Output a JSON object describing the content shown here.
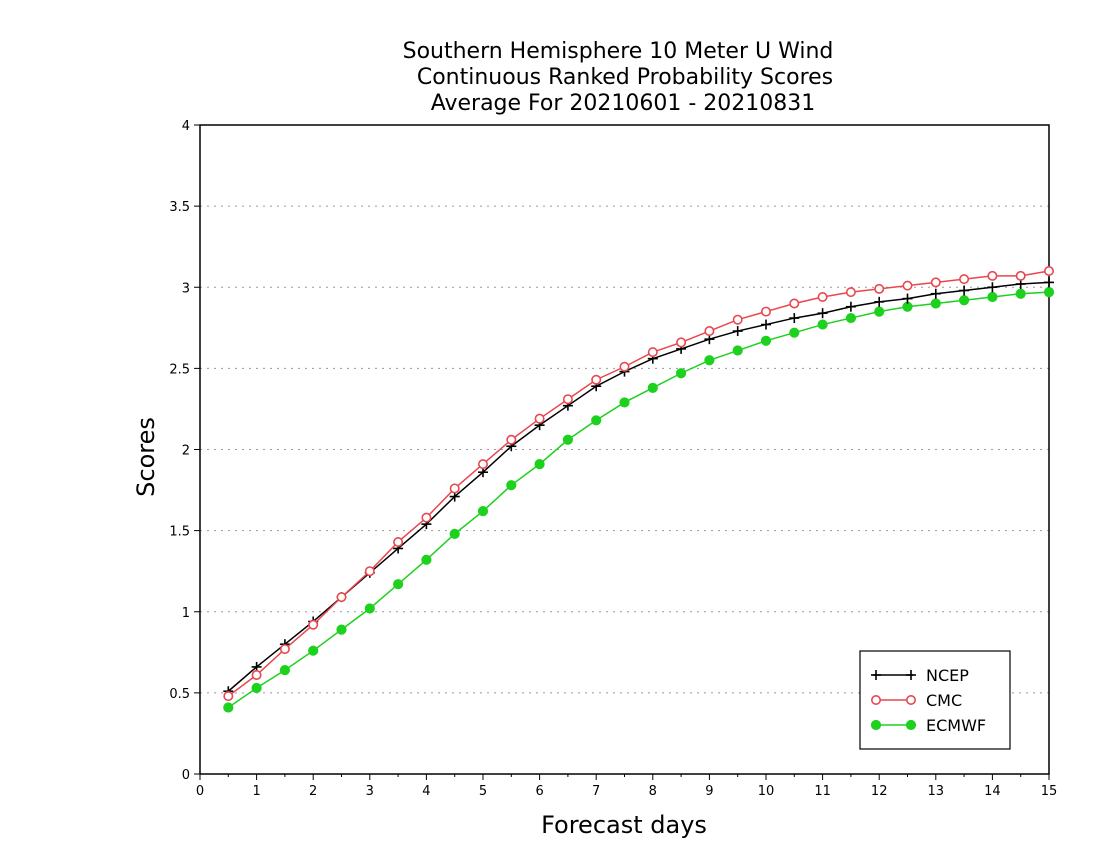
{
  "chart_data": {
    "type": "line",
    "title": [
      "Southern Hemisphere 10 Meter U Wind",
      "Continuous Ranked Probability Scores",
      "Average For 20210601 - 20210831"
    ],
    "xlabel": "Forecast days",
    "ylabel": "Scores",
    "xlim": [
      0,
      15
    ],
    "ylim": [
      0,
      4
    ],
    "x_ticks": [
      "0",
      "1",
      "2",
      "3",
      "4",
      "5",
      "6",
      "7",
      "8",
      "9",
      "10",
      "11",
      "12",
      "13",
      "14",
      "15"
    ],
    "y_ticks": [
      "0",
      "0.5",
      "1",
      "1.5",
      "2",
      "2.5",
      "3",
      "3.5",
      "4"
    ],
    "grid": "horizontal dotted",
    "legend_position": "bottom-right",
    "x": [
      0.5,
      1.0,
      1.5,
      2.0,
      2.5,
      3.0,
      3.5,
      4.0,
      4.5,
      5.0,
      5.5,
      6.0,
      6.5,
      7.0,
      7.5,
      8.0,
      8.5,
      9.0,
      9.5,
      10.0,
      10.5,
      11.0,
      11.5,
      12.0,
      12.5,
      13.0,
      13.5,
      14.0,
      14.5,
      15.0
    ],
    "series": [
      {
        "name": "NCEP",
        "color": "#000000",
        "marker": "plus",
        "values": [
          0.51,
          0.66,
          0.8,
          0.94,
          1.09,
          1.24,
          1.39,
          1.54,
          1.71,
          1.86,
          2.02,
          2.15,
          2.27,
          2.39,
          2.48,
          2.56,
          2.62,
          2.68,
          2.73,
          2.77,
          2.81,
          2.84,
          2.88,
          2.91,
          2.93,
          2.96,
          2.98,
          3.0,
          3.02,
          3.03
        ]
      },
      {
        "name": "CMC",
        "color": "#e8474d",
        "marker": "open-circle",
        "values": [
          0.48,
          0.61,
          0.77,
          0.92,
          1.09,
          1.25,
          1.43,
          1.58,
          1.76,
          1.91,
          2.06,
          2.19,
          2.31,
          2.43,
          2.51,
          2.6,
          2.66,
          2.73,
          2.8,
          2.85,
          2.9,
          2.94,
          2.97,
          2.99,
          3.01,
          3.03,
          3.05,
          3.07,
          3.07,
          3.1
        ]
      },
      {
        "name": "ECMWF",
        "color": "#1fd11f",
        "marker": "filled-circle",
        "values": [
          0.41,
          0.53,
          0.64,
          0.76,
          0.89,
          1.02,
          1.17,
          1.32,
          1.48,
          1.62,
          1.78,
          1.91,
          2.06,
          2.18,
          2.29,
          2.38,
          2.47,
          2.55,
          2.61,
          2.67,
          2.72,
          2.77,
          2.81,
          2.85,
          2.88,
          2.9,
          2.92,
          2.94,
          2.96,
          2.97
        ]
      }
    ]
  }
}
